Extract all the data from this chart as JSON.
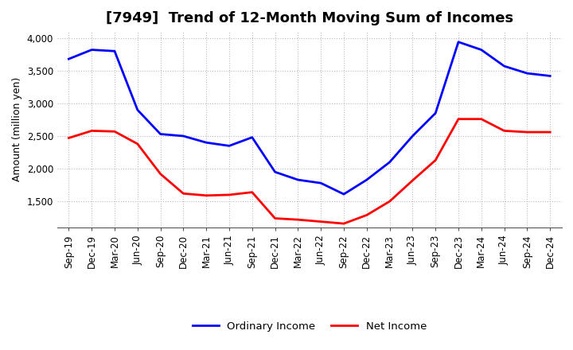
{
  "title": "[7949]  Trend of 12-Month Moving Sum of Incomes",
  "ylabel": "Amount (million yen)",
  "x_labels": [
    "Sep-19",
    "Dec-19",
    "Mar-20",
    "Jun-20",
    "Sep-20",
    "Dec-20",
    "Mar-21",
    "Jun-21",
    "Sep-21",
    "Dec-21",
    "Mar-22",
    "Jun-22",
    "Sep-22",
    "Dec-22",
    "Mar-23",
    "Jun-23",
    "Sep-23",
    "Dec-23",
    "Mar-24",
    "Jun-24",
    "Sep-24",
    "Dec-24"
  ],
  "ordinary_income": [
    3680,
    3820,
    3800,
    2900,
    2530,
    2500,
    2400,
    2350,
    2480,
    1950,
    1830,
    1780,
    1610,
    1830,
    2100,
    2500,
    2850,
    3940,
    3820,
    3570,
    3460,
    3420
  ],
  "net_income": [
    2470,
    2580,
    2570,
    2380,
    1920,
    1620,
    1590,
    1600,
    1640,
    1240,
    1220,
    1190,
    1160,
    1290,
    1500,
    1820,
    2130,
    2760,
    2760,
    2580,
    2560,
    2560
  ],
  "ordinary_color": "#0000FF",
  "net_color": "#FF0000",
  "ylim_min": 1100,
  "ylim_max": 4100,
  "yticks": [
    1500,
    2000,
    2500,
    3000,
    3500,
    4000
  ],
  "background_color": "#FFFFFF",
  "grid_color": "#BBBBBB",
  "line_width": 2.0,
  "title_fontsize": 13,
  "label_fontsize": 9,
  "tick_fontsize": 8.5
}
